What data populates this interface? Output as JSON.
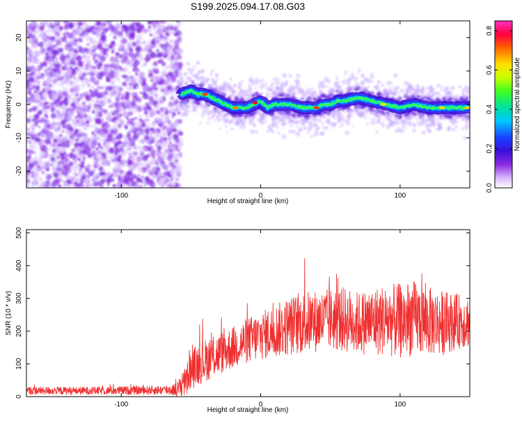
{
  "figure": {
    "title": "S199.2025.094.17.08.G03"
  },
  "chart_data": [
    {
      "type": "heatmap",
      "xlabel": "Height of straight line (km)",
      "ylabel": "Frequency (Hz)",
      "xlim": [
        -168,
        150
      ],
      "ylim": [
        -25,
        25
      ],
      "xticks": [
        -100,
        0,
        100
      ],
      "yticks": [
        -20,
        -10,
        0,
        10,
        20
      ],
      "grid": false,
      "noise_region_x": [
        -168,
        -57
      ],
      "ridge": {
        "x": [
          -57,
          -50,
          -45,
          -40,
          -35,
          -30,
          -25,
          -20,
          -10,
          -5,
          0,
          5,
          10,
          20,
          30,
          40,
          45,
          50,
          55,
          60,
          70,
          80,
          90,
          100,
          110,
          120,
          130,
          140,
          150
        ],
        "freq": [
          3,
          4,
          3,
          3,
          2,
          1,
          0,
          -1,
          -1,
          0,
          1,
          -1,
          0,
          0,
          -1,
          -1,
          0,
          0,
          1,
          1,
          2,
          1,
          0,
          -1,
          0,
          -1,
          -1,
          -1,
          -1
        ]
      },
      "colorbar": {
        "label": "Normalized spectral amplitude",
        "range": [
          0,
          0.85
        ],
        "ticks": [
          0.0,
          0.2,
          0.4,
          0.6,
          0.8
        ]
      }
    },
    {
      "type": "line",
      "xlabel": "Height of straight line (km)",
      "ylabel": "SNR (10 * v/v)",
      "xlim": [
        -168,
        150
      ],
      "ylim": [
        0,
        510
      ],
      "xticks": [
        -100,
        0,
        100
      ],
      "yticks": [
        0,
        100,
        200,
        300,
        400,
        500
      ],
      "grid": false,
      "color": "#f03030",
      "envelope": {
        "x": [
          -168,
          -120,
          -70,
          -60,
          -55,
          -52,
          -50,
          -45,
          -40,
          -30,
          -20,
          -10,
          0,
          10,
          20,
          30,
          40,
          50,
          60,
          70,
          80,
          90,
          100,
          110,
          120,
          130,
          140,
          150
        ],
        "mean": [
          18,
          18,
          20,
          22,
          40,
          60,
          80,
          100,
          110,
          130,
          150,
          170,
          185,
          200,
          215,
          225,
          230,
          235,
          235,
          225,
          230,
          235,
          230,
          240,
          230,
          225,
          230,
          230
        ],
        "spread": [
          12,
          12,
          14,
          20,
          45,
          55,
          60,
          65,
          65,
          65,
          65,
          70,
          75,
          80,
          90,
          95,
          95,
          95,
          100,
          95,
          105,
          110,
          115,
          115,
          105,
          100,
          85,
          80
        ]
      }
    }
  ]
}
